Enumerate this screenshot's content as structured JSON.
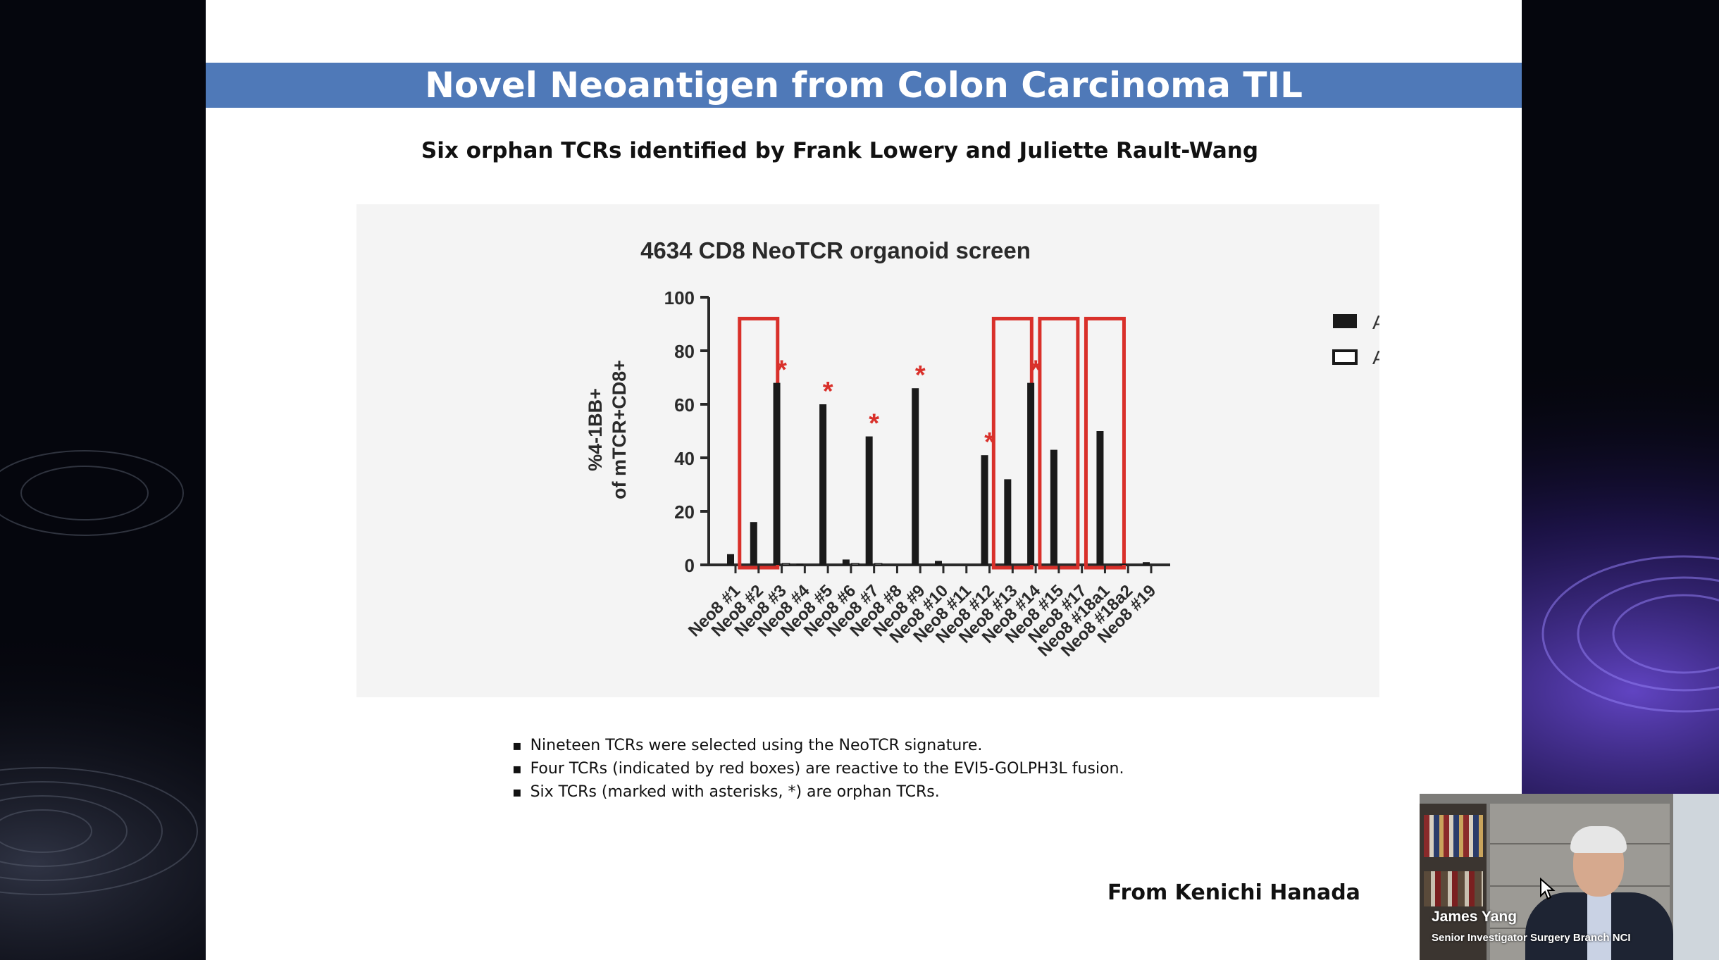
{
  "slide": {
    "title": "Novel Neoantigen from Colon Carcinoma TIL",
    "subtitle": "Six orphan TCRs identified by Frank Lowery and Juliette Rault-Wang",
    "bullets": [
      "Nineteen TCRs were selected using the NeoTCR signature.",
      "Four TCRs (indicated by red boxes) are reactive to the EVI5-GOLPH3L fusion.",
      "Six TCRs (marked with asterisks, *) are orphan TCRs."
    ],
    "credit": "From Kenichi Hanada"
  },
  "chart_data": {
    "type": "bar",
    "title": "4634 CD8 NeoTCR organoid screen",
    "ylabel_line1": "%4-1BB+",
    "ylabel_line2": "of mTCR+CD8+",
    "xlabel": "",
    "ylim": [
      0,
      100
    ],
    "yticks": [
      0,
      20,
      40,
      60,
      80,
      100
    ],
    "grid": false,
    "legend_position": "top-right",
    "categories": [
      "Neo8 #1",
      "Neo8 #2",
      "Neo8 #3",
      "Neo8 #4",
      "Neo8 #5",
      "Neo8 #6",
      "Neo8 #7",
      "Neo8 #8",
      "Neo8 #9",
      "Neo8 #10",
      "Neo8 #11",
      "Neo8 #12",
      "Neo8 #13",
      "Neo8 #14",
      "Neo8 #15",
      "Neo8 #17",
      "Neo8 #18a1",
      "Neo8 #18a2",
      "Neo8 #19"
    ],
    "series": [
      {
        "name": "Autologous organoid",
        "color": "#1a1a1a",
        "values": [
          4,
          16,
          68,
          0.5,
          60,
          2,
          48,
          0,
          66,
          1.5,
          0,
          41,
          32,
          68,
          43,
          0,
          50,
          0.5,
          1
        ]
      },
      {
        "name": "Allo organoid",
        "color": "#ffffff",
        "values": [
          0,
          0,
          0.5,
          0,
          0,
          0.5,
          0.5,
          0,
          0,
          0,
          0,
          0,
          0,
          0,
          0,
          0,
          0,
          0,
          0
        ]
      }
    ],
    "red_boxes": [
      "Neo8 #2",
      "Neo8 #13",
      "Neo8 #15",
      "Neo8 #18a1"
    ],
    "red_box_top": 92,
    "asterisks": [
      "Neo8 #3",
      "Neo8 #5",
      "Neo8 #7",
      "Neo8 #9",
      "Neo8 #12",
      "Neo8 #14"
    ],
    "asterisk_symbol": "*",
    "highlight_color": "#d9302a"
  },
  "video": {
    "name": "James Yang",
    "role": "Senior Investigator Surgery Branch NCI"
  }
}
